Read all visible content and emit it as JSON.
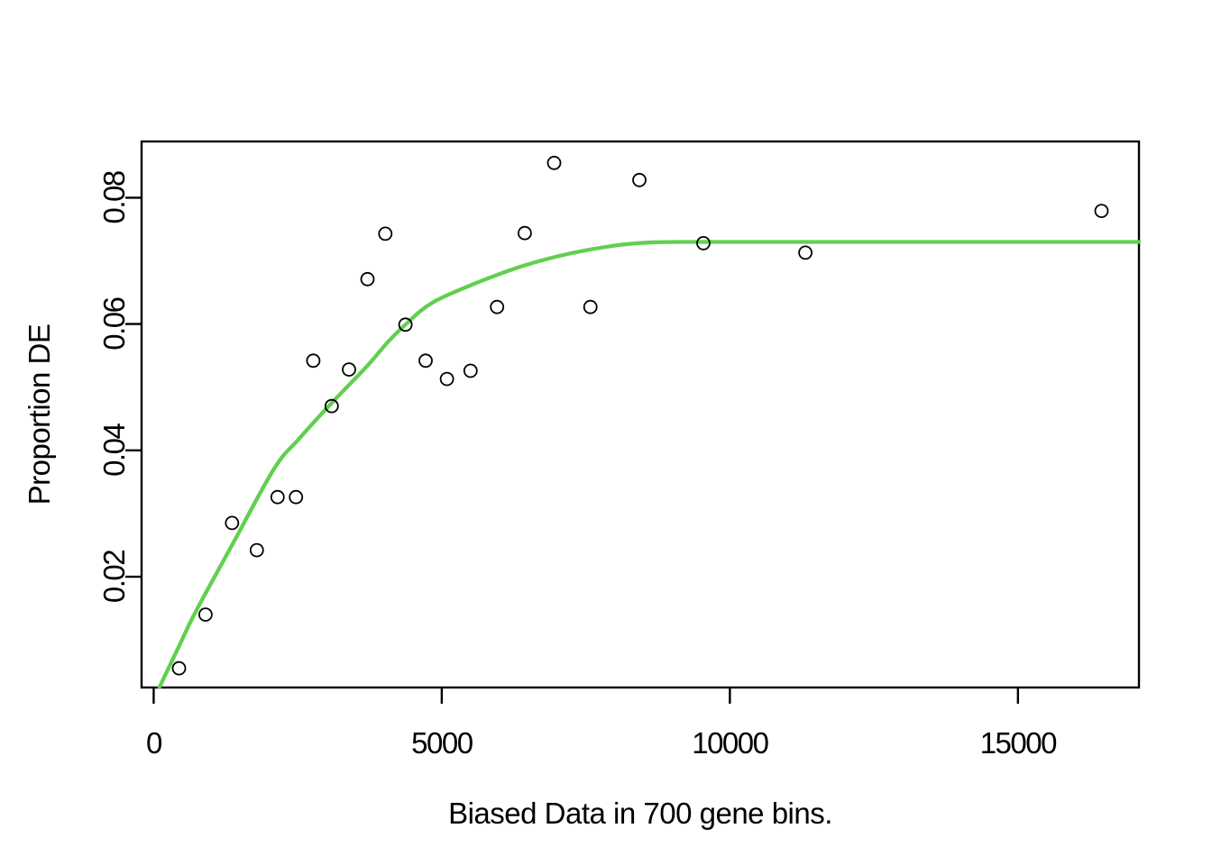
{
  "figure": {
    "background": "#ffffff",
    "frame_color": "#000000",
    "text_color": "#000000"
  },
  "chart_data": {
    "type": "scatter",
    "title": "",
    "xlabel": "Biased Data in 700 gene bins.",
    "ylabel": "Proportion DE",
    "grid": false,
    "legend": "none",
    "xlim": [
      -210,
      17100
    ],
    "ylim": [
      0.00246,
      0.0889
    ],
    "x_ticks": {
      "values": [
        0,
        5000,
        10000,
        15000
      ],
      "labels": [
        "0",
        "5000",
        "10000",
        "15000"
      ]
    },
    "y_ticks": {
      "values": [
        0.02,
        0.04,
        0.06,
        0.08
      ],
      "labels": [
        "0.02",
        "0.04",
        "0.06",
        "0.08"
      ]
    },
    "points": {
      "marker": "open-circle",
      "color": "#000000",
      "x": [
        440,
        900,
        1360,
        1790,
        2150,
        2470,
        2770,
        3090,
        3390,
        3710,
        4020,
        4370,
        4720,
        5090,
        5500,
        5960,
        6440,
        6950,
        7580,
        8430,
        9540,
        11310,
        16450
      ],
      "y": [
        0.0055,
        0.014,
        0.0285,
        0.0242,
        0.0326,
        0.0326,
        0.0542,
        0.047,
        0.0528,
        0.0671,
        0.0743,
        0.0599,
        0.0542,
        0.0513,
        0.0526,
        0.0627,
        0.0744,
        0.0855,
        0.0627,
        0.0828,
        0.0728,
        0.0713,
        0.0779
      ]
    },
    "fit_curve": {
      "name": "fitted-probability-weighting-function",
      "color": "#61D04F",
      "asymptote": 0.073,
      "x": [
        100,
        450,
        720,
        1360,
        2090,
        2500,
        3100,
        3700,
        4060,
        4370,
        4840,
        5630,
        6410,
        7190,
        7980,
        8600,
        9300,
        11000,
        13000,
        15000,
        17100
      ],
      "y": [
        0.0025,
        0.0092,
        0.0143,
        0.025,
        0.0371,
        0.0416,
        0.0476,
        0.0533,
        0.0571,
        0.0599,
        0.0634,
        0.0666,
        0.0692,
        0.0711,
        0.0724,
        0.0729,
        0.073,
        0.073,
        0.073,
        0.073,
        0.073
      ]
    }
  }
}
